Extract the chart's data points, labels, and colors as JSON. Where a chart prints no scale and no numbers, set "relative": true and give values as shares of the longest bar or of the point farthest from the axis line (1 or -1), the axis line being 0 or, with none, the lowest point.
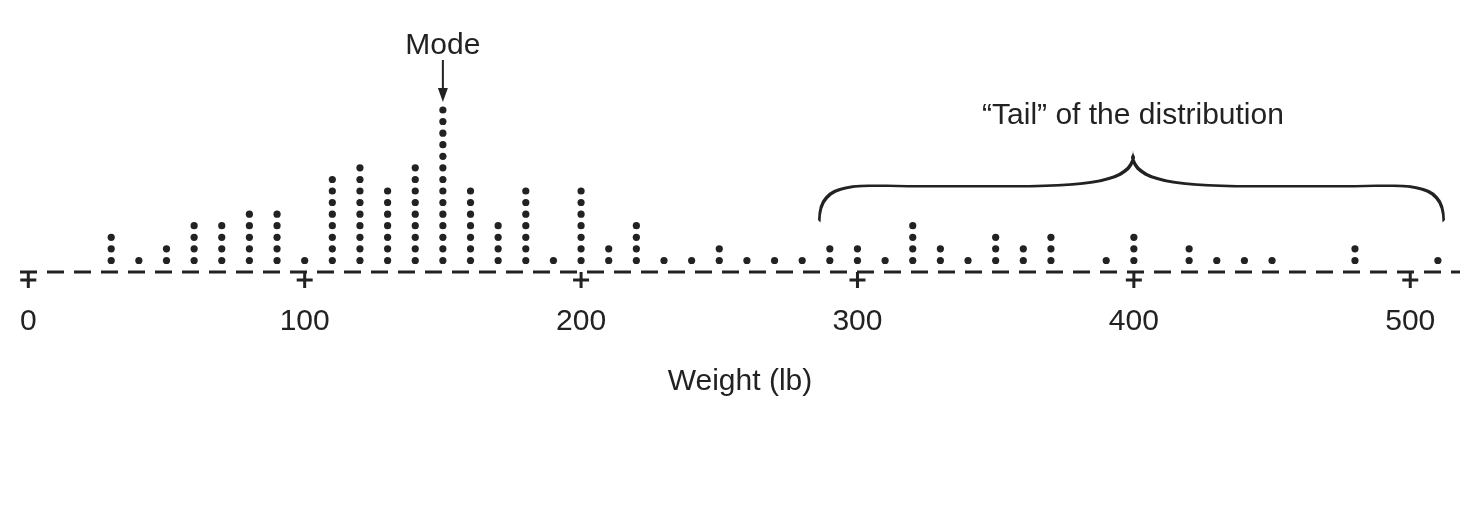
{
  "chart_data": {
    "type": "scatter",
    "xlabel": "Weight (lb)",
    "relative": true,
    "marker": "circle",
    "grid": false,
    "legend": false,
    "xlim": [
      -3,
      518
    ],
    "xticks": [
      0,
      100,
      200,
      300,
      400,
      500
    ],
    "annotations": [
      {
        "text": "Mode",
        "x": 150,
        "y": 1
      },
      "“Tail” of the distribution"
    ],
    "series": [
      {
        "color": "#222222",
        "x": [
          30,
          30,
          30,
          40,
          50,
          50,
          60,
          60,
          60,
          60,
          70,
          70,
          70,
          70,
          80,
          80,
          80,
          80,
          80,
          90,
          90,
          90,
          90,
          90,
          100,
          110,
          110,
          110,
          110,
          110,
          110,
          110,
          110,
          120,
          120,
          120,
          120,
          120,
          120,
          120,
          120,
          120,
          130,
          130,
          130,
          130,
          130,
          130,
          130,
          140,
          140,
          140,
          140,
          140,
          140,
          140,
          140,
          140,
          150,
          150,
          150,
          150,
          150,
          150,
          150,
          150,
          150,
          150,
          150,
          150,
          150,
          150,
          160,
          160,
          160,
          160,
          160,
          160,
          160,
          170,
          170,
          170,
          170,
          180,
          180,
          180,
          180,
          180,
          180,
          180,
          190,
          200,
          200,
          200,
          200,
          200,
          200,
          200,
          210,
          210,
          220,
          220,
          220,
          220,
          230,
          240,
          250,
          250,
          260,
          270,
          280,
          290,
          290,
          300,
          300,
          310,
          320,
          320,
          320,
          320,
          330,
          330,
          340,
          350,
          350,
          350,
          360,
          360,
          370,
          370,
          370,
          390,
          400,
          400,
          400,
          420,
          420,
          430,
          440,
          450,
          480,
          480,
          510
        ],
        "values": [
          0.071,
          0.143,
          0.214,
          0.071,
          0.071,
          0.143,
          0.071,
          0.143,
          0.214,
          0.286,
          0.071,
          0.143,
          0.214,
          0.286,
          0.071,
          0.143,
          0.214,
          0.286,
          0.357,
          0.071,
          0.143,
          0.214,
          0.286,
          0.357,
          0.071,
          0.071,
          0.143,
          0.214,
          0.286,
          0.357,
          0.429,
          0.5,
          0.571,
          0.071,
          0.143,
          0.214,
          0.286,
          0.357,
          0.429,
          0.5,
          0.571,
          0.643,
          0.071,
          0.143,
          0.214,
          0.286,
          0.357,
          0.429,
          0.5,
          0.071,
          0.143,
          0.214,
          0.286,
          0.357,
          0.429,
          0.5,
          0.571,
          0.643,
          0.071,
          0.143,
          0.214,
          0.286,
          0.357,
          0.429,
          0.5,
          0.571,
          0.643,
          0.714,
          0.786,
          0.857,
          0.929,
          1,
          0.071,
          0.143,
          0.214,
          0.286,
          0.357,
          0.429,
          0.5,
          0.071,
          0.143,
          0.214,
          0.286,
          0.071,
          0.143,
          0.214,
          0.286,
          0.357,
          0.429,
          0.5,
          0.071,
          0.071,
          0.143,
          0.214,
          0.286,
          0.357,
          0.429,
          0.5,
          0.071,
          0.143,
          0.071,
          0.143,
          0.214,
          0.286,
          0.071,
          0.071,
          0.071,
          0.143,
          0.071,
          0.071,
          0.071,
          0.071,
          0.143,
          0.071,
          0.143,
          0.071,
          0.071,
          0.143,
          0.214,
          0.286,
          0.071,
          0.143,
          0.071,
          0.071,
          0.143,
          0.214,
          0.071,
          0.143,
          0.071,
          0.143,
          0.214,
          0.071,
          0.071,
          0.143,
          0.214,
          0.071,
          0.143,
          0.071,
          0.071,
          0.071,
          0.071,
          0.143,
          0.071
        ]
      }
    ]
  }
}
